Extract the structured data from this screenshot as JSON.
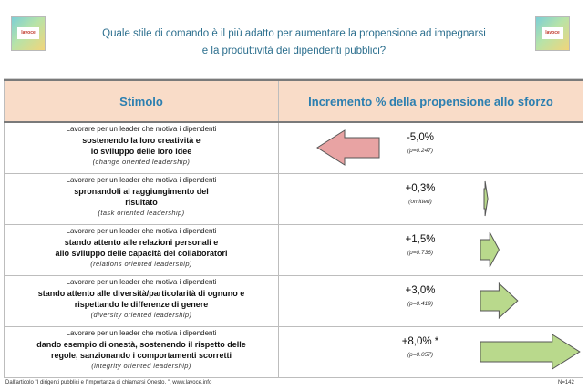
{
  "logo_text": "lavoce",
  "title_line1": "Quale stile di comando è il più adatto per aumentare la propensione ad impegnarsi",
  "title_line2": "e la produttività dei dipendenti pubblici?",
  "header": {
    "col1": "Stimolo",
    "col2": "Incremento % della propensione allo sforzo"
  },
  "rows": [
    {
      "l1": "Lavorare per un leader che motiva i dipendenti",
      "l2a": "sostenendo la loro creatività e",
      "l2b": "lo sviluppo delle loro idee",
      "l3": "(change oriented leadership)",
      "pct": "-5,0%",
      "p": "(p=0.247)"
    },
    {
      "l1": "Lavorare per un leader che motiva i dipendenti",
      "l2a": "spronandoli  al raggiungimento del",
      "l2b": "risultato",
      "l3": "(task oriented leadership)",
      "pct": "+0,3%",
      "p": "(omitted)"
    },
    {
      "l1": "Lavorare per un  leader che motiva i dipendenti",
      "l2a": "stando attento alle relazioni personali e",
      "l2b": "allo sviluppo delle  capacità dei collaboratori",
      "l3": "(relations oriented leadership)",
      "pct": "+1,5%",
      "p": "(p=0.736)"
    },
    {
      "l1": "Lavorare per un leader che motiva i dipendenti",
      "l2a": "stando attento alle diversità/particolarità di ognuno e",
      "l2b": "rispettando le differenze  di genere",
      "l3": "(diversity oriented leadership)",
      "pct": "+3,0%",
      "p": "(p=0.419)"
    },
    {
      "l1": "Lavorare per un  leader che motiva i dipendenti",
      "l2a": "dando esempio di onestà, sostenendo il rispetto delle",
      "l2b": "regole, sanzionando i comportamenti scorretti",
      "l3": "(integrity oriented leadership)",
      "pct": "+8,0% *",
      "p": "(p=0.057)"
    }
  ],
  "footer_left": "Dall'articolo \"I dirigenti pubblici e l'importanza di chiamarsi Onesto. \", www.lavoce.info",
  "footer_right": "N=142",
  "colors": {
    "negative": "#e8a3a3",
    "positive": "#b9d98c",
    "stroke": "#555555",
    "header_bg": "#f9dcc8",
    "title": "#2c6f8e"
  },
  "chart_data": {
    "type": "bar",
    "categories": [
      "change oriented leadership",
      "task oriented leadership",
      "relations oriented leadership",
      "diversity oriented leadership",
      "integrity oriented leadership"
    ],
    "values": [
      -5.0,
      0.3,
      1.5,
      3.0,
      8.0
    ],
    "p_values": [
      "0.247",
      "omitted",
      "0.736",
      "0.419",
      "0.057"
    ],
    "title": "Quale stile di comando è il più adatto per aumentare la propensione ad impegnarsi e la produttività dei dipendenti pubblici?",
    "ylabel": "Incremento % della propensione allo sforzo"
  }
}
